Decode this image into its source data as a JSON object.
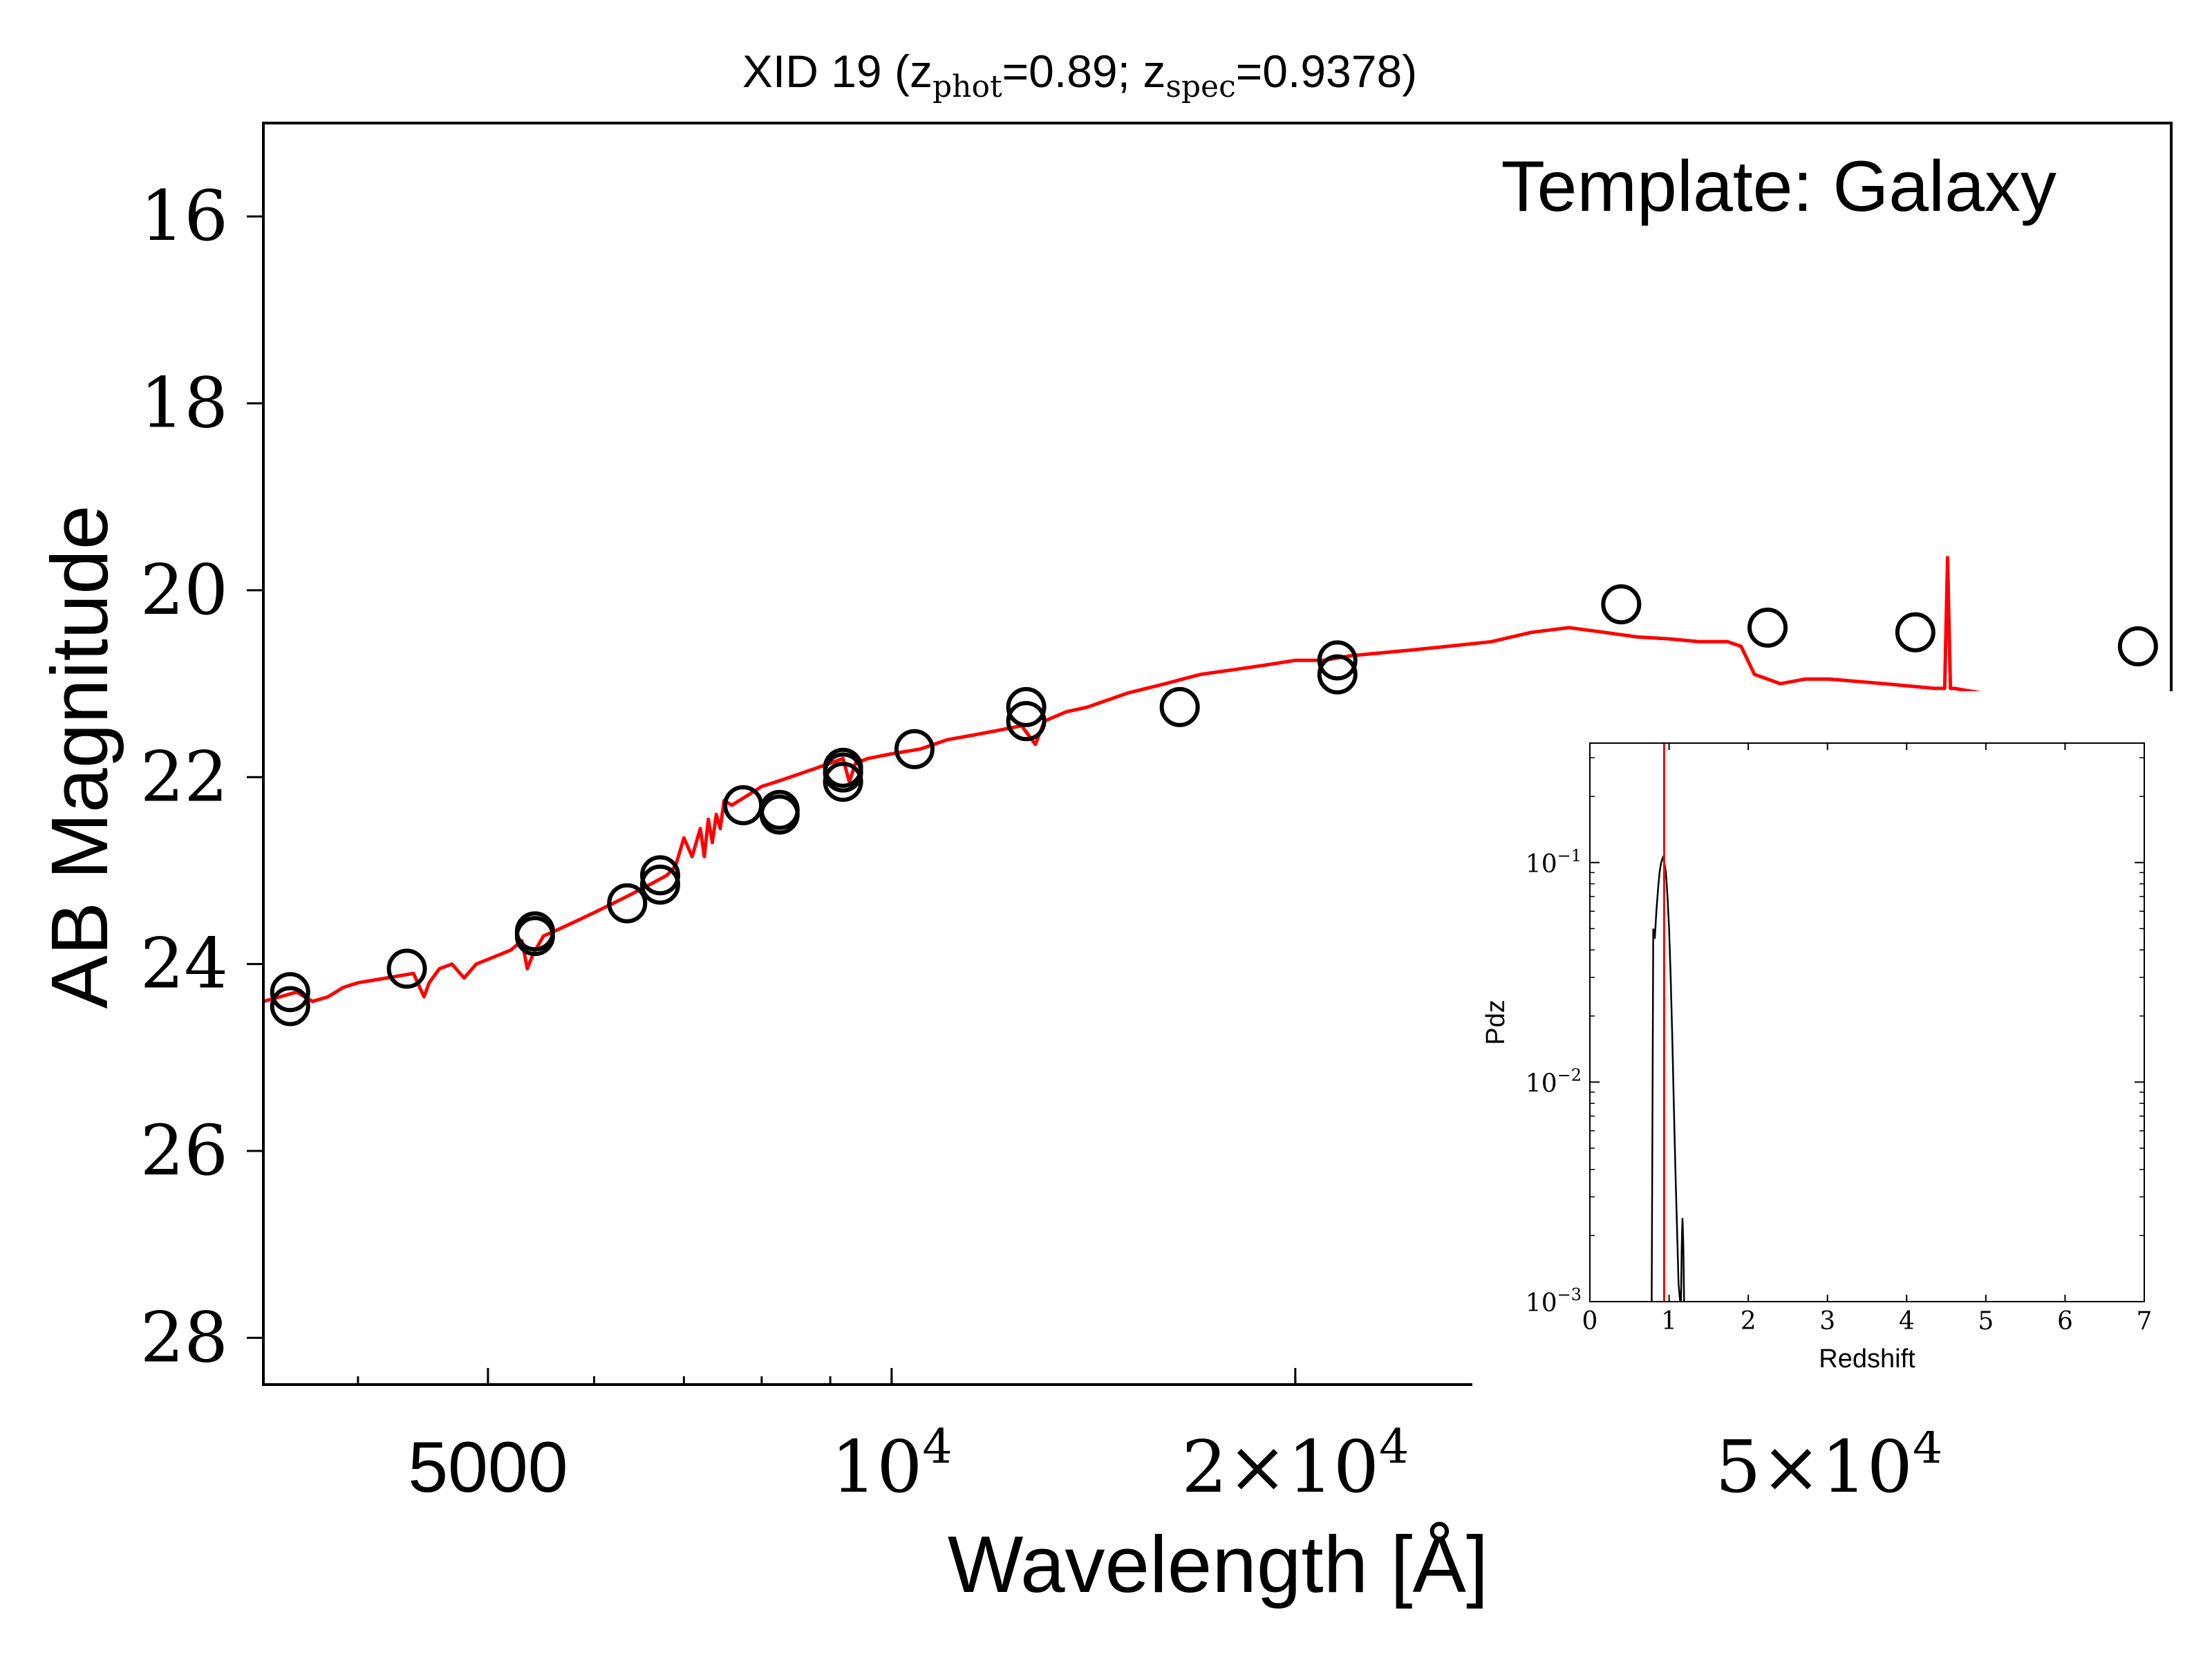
{
  "chart_data": [
    {
      "type": "scatter",
      "title": {
        "prefix": "XID 19 (z",
        "phot_sub": "phot",
        "phot_value": "=0.89; z",
        "spec_sub": "spec",
        "spec_value": "=0.9378)"
      },
      "annotation": "Template: Galaxy",
      "xlabel": "Wavelength [Å]",
      "ylabel": "AB Magnitude",
      "xscale": "log",
      "xlim": [
        3400,
        90000
      ],
      "ylim": [
        28.5,
        15
      ],
      "y_inverted": true,
      "xticks": [
        {
          "value": 5000,
          "label": "5000"
        },
        {
          "value": 10000,
          "base": "10",
          "exp": "4"
        },
        {
          "value": 20000,
          "base": "2×10",
          "exp": "4"
        },
        {
          "value": 50000,
          "base": "5×10",
          "exp": "4"
        }
      ],
      "yticks": [
        16,
        18,
        20,
        22,
        24,
        26,
        28
      ],
      "series": [
        {
          "kind": "line",
          "color": "#ff0000",
          "x": [
            3400,
            3500,
            3600,
            3700,
            3800,
            3900,
            4000,
            4200,
            4400,
            4480,
            4520,
            4600,
            4700,
            4800,
            4900,
            5000,
            5200,
            5300,
            5350,
            5400,
            5500,
            5600,
            5800,
            6000,
            6200,
            6400,
            6600,
            6800,
            6900,
            7000,
            7100,
            7200,
            7250,
            7300,
            7350,
            7400,
            7450,
            7500,
            7600,
            7800,
            8000,
            8200,
            8400,
            8600,
            8800,
            9000,
            9200,
            9300,
            9400,
            9600,
            10000,
            10500,
            11000,
            11500,
            12000,
            12500,
            12800,
            13000,
            13500,
            14000,
            15000,
            16000,
            17000,
            18000,
            19000,
            20000,
            21000,
            22000,
            24000,
            26000,
            28000,
            30000,
            32000,
            34000,
            36000,
            38000,
            40000,
            42000,
            43000,
            44000,
            45000,
            46000,
            48000,
            50000,
            55000,
            60000,
            61000,
            61300,
            61600,
            62000,
            65000,
            70000,
            75000,
            80000,
            85000,
            90000
          ],
          "y": [
            24.4,
            24.35,
            24.3,
            24.4,
            24.35,
            24.25,
            24.2,
            24.15,
            24.1,
            24.35,
            24.2,
            24.05,
            24.0,
            24.15,
            24.0,
            23.95,
            23.85,
            23.75,
            24.05,
            23.9,
            23.7,
            23.65,
            23.55,
            23.45,
            23.35,
            23.25,
            23.15,
            23.05,
            22.95,
            22.65,
            22.85,
            22.55,
            22.85,
            22.45,
            22.7,
            22.4,
            22.55,
            22.25,
            22.3,
            22.2,
            22.1,
            22.05,
            22.0,
            21.95,
            21.9,
            21.85,
            21.8,
            22.05,
            21.85,
            21.8,
            21.75,
            21.7,
            21.6,
            21.55,
            21.5,
            21.45,
            21.65,
            21.4,
            21.3,
            21.25,
            21.1,
            21.0,
            20.9,
            20.85,
            20.8,
            20.75,
            20.75,
            20.7,
            20.65,
            20.6,
            20.55,
            20.45,
            20.4,
            20.45,
            20.5,
            20.52,
            20.55,
            20.55,
            20.6,
            20.9,
            20.95,
            21.0,
            20.95,
            20.95,
            21.0,
            21.05,
            21.05,
            19.65,
            21.05,
            21.05,
            21.1,
            21.15,
            21.2,
            21.25,
            21.3,
            21.35
          ]
        },
        {
          "kind": "points",
          "marker": "open-circle",
          "color": "#000000",
          "x": [
            3560,
            3560,
            4350,
            5420,
            5420,
            6350,
            6720,
            6720,
            7750,
            8250,
            8250,
            9200,
            9200,
            9200,
            10400,
            12600,
            12600,
            16400,
            21500,
            21500,
            35000,
            45000,
            58000,
            85000
          ],
          "y": [
            24.3,
            24.45,
            24.05,
            23.65,
            23.7,
            23.35,
            23.05,
            23.15,
            22.3,
            22.35,
            22.4,
            21.9,
            21.95,
            22.05,
            21.7,
            21.25,
            21.4,
            21.25,
            20.75,
            20.9,
            20.15,
            20.4,
            20.45,
            20.6
          ]
        }
      ]
    },
    {
      "type": "line",
      "xlabel": "Redshift",
      "ylabel": "Pdz",
      "yscale": "log",
      "xlim": [
        0,
        7
      ],
      "ylim": [
        0.001,
        0.35
      ],
      "xticks": [
        0,
        1,
        2,
        3,
        4,
        5,
        6,
        7
      ],
      "yticks": [
        {
          "value": 0.1,
          "base": "10",
          "exp": "−1"
        },
        {
          "value": 0.01,
          "base": "10",
          "exp": "−2"
        },
        {
          "value": 0.001,
          "base": "10",
          "exp": "−3"
        }
      ],
      "vline": {
        "x": 0.9378,
        "color": "#ff0000"
      },
      "series": [
        {
          "kind": "line",
          "color": "#000000",
          "x": [
            0.78,
            0.8,
            0.82,
            0.84,
            0.86,
            0.88,
            0.9,
            0.92,
            0.94,
            0.96,
            0.98,
            1.0,
            1.02,
            1.04,
            1.06,
            1.08,
            1.1,
            1.12,
            1.14
          ],
          "y": [
            0.001,
            0.05,
            0.045,
            0.06,
            0.075,
            0.09,
            0.1,
            0.105,
            0.1,
            0.09,
            0.07,
            0.05,
            0.03,
            0.016,
            0.008,
            0.004,
            0.0022,
            0.0012,
            0.001
          ]
        },
        {
          "kind": "line",
          "color": "#000000",
          "x": [
            1.15,
            1.16,
            1.17,
            1.18,
            1.19
          ],
          "y": [
            0.001,
            0.0018,
            0.0024,
            0.0018,
            0.001
          ]
        }
      ]
    }
  ]
}
